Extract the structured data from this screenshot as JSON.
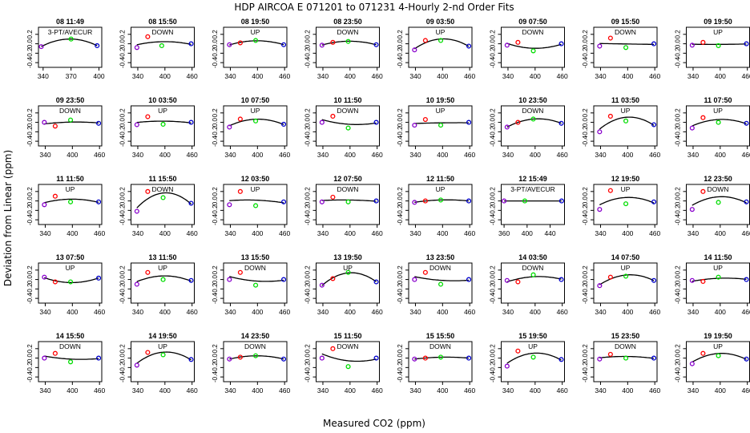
{
  "chart_data": {
    "type": "scatter",
    "title": "HDP   AIRCOA E   071201 to 071231   4-Hourly 2-nd Order Fits",
    "xlabel": "Measured CO2 (ppm)",
    "ylabel": "Deviation from Linear (ppm)",
    "y_ticks": [
      "0.2",
      "0.0",
      "-0.2",
      "-0.4"
    ],
    "ylim": [
      -0.5,
      0.35
    ],
    "colors": {
      "point_low": "#8800cc",
      "point_mid_low": "#ff0000",
      "point_mid_high": "#00dd00",
      "point_high": "#0000cc",
      "fit": "#000000"
    },
    "panels": [
      {
        "time": "08 11:49",
        "mode": "3-PT/AVECUR",
        "xt": [
          "340",
          "370",
          "400"
        ],
        "xlim": [
          335,
          403
        ],
        "x": [
          338,
          370,
          398
        ],
        "y": [
          -0.06,
          0.1,
          -0.04
        ]
      },
      {
        "time": "08 15:50",
        "mode": "DOWN",
        "xt": [
          "340",
          "400",
          "460"
        ],
        "xlim": [
          325,
          465
        ],
        "x": [
          338,
          362,
          393,
          458
        ],
        "y": [
          -0.08,
          0.15,
          -0.04,
          0.0
        ]
      },
      {
        "time": "08 19:50",
        "mode": "UP",
        "xt": [
          "340",
          "400",
          "460"
        ],
        "xlim": [
          325,
          465
        ],
        "x": [
          338,
          362,
          396,
          458
        ],
        "y": [
          -0.02,
          0.02,
          0.07,
          -0.02
        ]
      },
      {
        "time": "08 23:50",
        "mode": "DOWN",
        "xt": [
          "340",
          "400",
          "460"
        ],
        "xlim": [
          325,
          465
        ],
        "x": [
          338,
          362,
          396,
          458
        ],
        "y": [
          -0.03,
          0.03,
          0.05,
          -0.02
        ]
      },
      {
        "time": "09 03:50",
        "mode": "UP",
        "xt": [
          "340",
          "400",
          "460"
        ],
        "xlim": [
          325,
          465
        ],
        "x": [
          338,
          362,
          396,
          458
        ],
        "y": [
          -0.13,
          0.07,
          0.07,
          -0.05
        ]
      },
      {
        "time": "09 07:50",
        "mode": "DOWN",
        "xt": [
          "340",
          "400",
          "460"
        ],
        "xlim": [
          325,
          465
        ],
        "x": [
          338,
          362,
          396,
          458
        ],
        "y": [
          -0.03,
          0.03,
          -0.15,
          0.0
        ]
      },
      {
        "time": "09 15:50",
        "mode": "DOWN",
        "xt": [
          "340",
          "400",
          "460"
        ],
        "xlim": [
          325,
          465
        ],
        "x": [
          338,
          362,
          396,
          458
        ],
        "y": [
          -0.05,
          0.12,
          -0.08,
          0.0
        ]
      },
      {
        "time": "09 19:50",
        "mode": "UP",
        "xt": [
          "340",
          "400",
          "460"
        ],
        "xlim": [
          325,
          465
        ],
        "x": [
          338,
          362,
          396,
          458
        ],
        "y": [
          -0.03,
          0.03,
          -0.04,
          0.0
        ]
      },
      {
        "time": "09 23:50",
        "mode": "DOWN",
        "xt": [
          "340",
          "400",
          "460"
        ],
        "xlim": [
          325,
          465
        ],
        "x": [
          338,
          362,
          396,
          458
        ],
        "y": [
          0.0,
          -0.08,
          0.05,
          -0.02
        ]
      },
      {
        "time": "10 03:50",
        "mode": "UP",
        "xt": [
          "340",
          "400",
          "460"
        ],
        "xlim": [
          325,
          465
        ],
        "x": [
          338,
          362,
          396,
          458
        ],
        "y": [
          -0.05,
          0.12,
          -0.04,
          0.0
        ]
      },
      {
        "time": "10 07:50",
        "mode": "UP",
        "xt": [
          "340",
          "400",
          "460"
        ],
        "xlim": [
          325,
          465
        ],
        "x": [
          338,
          362,
          396,
          458
        ],
        "y": [
          -0.1,
          0.07,
          0.03,
          -0.04
        ]
      },
      {
        "time": "10 11:50",
        "mode": "DOWN",
        "xt": [
          "340",
          "400",
          "460"
        ],
        "xlim": [
          325,
          465
        ],
        "x": [
          338,
          362,
          396,
          458
        ],
        "y": [
          0.0,
          0.13,
          -0.12,
          0.0
        ]
      },
      {
        "time": "10 19:50",
        "mode": "UP",
        "xt": [
          "340",
          "400",
          "460"
        ],
        "xlim": [
          325,
          465
        ],
        "x": [
          338,
          362,
          396,
          458
        ],
        "y": [
          -0.06,
          0.06,
          -0.06,
          0.0
        ]
      },
      {
        "time": "10 23:50",
        "mode": "DOWN",
        "xt": [
          "340",
          "400",
          "460"
        ],
        "xlim": [
          325,
          465
        ],
        "x": [
          338,
          362,
          396,
          458
        ],
        "y": [
          -0.1,
          0.0,
          0.07,
          -0.02
        ]
      },
      {
        "time": "11 03:50",
        "mode": "UP",
        "xt": [
          "340",
          "400",
          "460"
        ],
        "xlim": [
          325,
          465
        ],
        "x": [
          338,
          362,
          396,
          458
        ],
        "y": [
          -0.2,
          0.13,
          0.03,
          -0.05
        ]
      },
      {
        "time": "11 07:50",
        "mode": "UP",
        "xt": [
          "340",
          "400",
          "460"
        ],
        "xlim": [
          325,
          465
        ],
        "x": [
          338,
          362,
          396,
          458
        ],
        "y": [
          -0.12,
          0.1,
          0.0,
          -0.02
        ]
      },
      {
        "time": "11 11:50",
        "mode": "UP",
        "xt": [
          "340",
          "400",
          "460"
        ],
        "xlim": [
          325,
          465
        ],
        "x": [
          338,
          362,
          396,
          458
        ],
        "y": [
          -0.08,
          0.1,
          -0.02,
          -0.02
        ]
      },
      {
        "time": "11 15:50",
        "mode": "DOWN",
        "xt": [
          "340",
          "400",
          "460"
        ],
        "xlim": [
          325,
          465
        ],
        "x": [
          338,
          362,
          396,
          458
        ],
        "y": [
          -0.22,
          0.2,
          0.07,
          -0.05
        ]
      },
      {
        "time": "12 03:50",
        "mode": "UP",
        "xt": [
          "340",
          "400",
          "460"
        ],
        "xlim": [
          325,
          465
        ],
        "x": [
          338,
          362,
          396,
          458
        ],
        "y": [
          -0.08,
          0.2,
          -0.1,
          -0.02
        ]
      },
      {
        "time": "12 07:50",
        "mode": "DOWN",
        "xt": [
          "340",
          "400",
          "460"
        ],
        "xlim": [
          325,
          465
        ],
        "x": [
          338,
          362,
          396,
          458
        ],
        "y": [
          -0.02,
          0.08,
          -0.02,
          0.0
        ]
      },
      {
        "time": "12 11:50",
        "mode": "UP",
        "xt": [
          "340",
          "400",
          "460"
        ],
        "xlim": [
          325,
          465
        ],
        "x": [
          338,
          362,
          396,
          458
        ],
        "y": [
          -0.03,
          0.0,
          0.02,
          0.0
        ]
      },
      {
        "time": "12 15:49",
        "mode": "3-PT/AVECUR",
        "xt": [
          "360",
          "400",
          "440"
        ],
        "xlim": [
          355,
          465
        ],
        "x": [
          360,
          396,
          460
        ],
        "y": [
          0.0,
          0.0,
          0.0
        ]
      },
      {
        "time": "12 19:50",
        "mode": "UP",
        "xt": [
          "340",
          "400",
          "460"
        ],
        "xlim": [
          325,
          465
        ],
        "x": [
          338,
          362,
          396,
          458
        ],
        "y": [
          -0.18,
          0.22,
          -0.06,
          -0.02
        ]
      },
      {
        "time": "12 23:50",
        "mode": "DOWN",
        "xt": [
          "340",
          "400",
          "460"
        ],
        "xlim": [
          325,
          465
        ],
        "x": [
          338,
          362,
          396,
          458
        ],
        "y": [
          -0.18,
          0.2,
          -0.03,
          -0.02
        ]
      },
      {
        "time": "13 07:50",
        "mode": "UP",
        "xt": [
          "340",
          "400",
          "460"
        ],
        "xlim": [
          325,
          465
        ],
        "x": [
          338,
          362,
          396,
          458
        ],
        "y": [
          0.05,
          -0.05,
          -0.05,
          0.03
        ]
      },
      {
        "time": "13 11:50",
        "mode": "UP",
        "xt": [
          "340",
          "400",
          "460"
        ],
        "xlim": [
          325,
          465
        ],
        "x": [
          338,
          362,
          396,
          458
        ],
        "y": [
          -0.1,
          0.15,
          0.0,
          -0.02
        ]
      },
      {
        "time": "13 15:50",
        "mode": "DOWN",
        "xt": [
          "340",
          "400",
          "460"
        ],
        "xlim": [
          325,
          465
        ],
        "x": [
          338,
          362,
          396,
          458
        ],
        "y": [
          0.0,
          0.15,
          -0.12,
          0.0
        ]
      },
      {
        "time": "13 19:50",
        "mode": "UP",
        "xt": [
          "340",
          "400",
          "460"
        ],
        "xlim": [
          325,
          465
        ],
        "x": [
          338,
          362,
          396,
          458
        ],
        "y": [
          -0.12,
          0.02,
          0.15,
          -0.05
        ]
      },
      {
        "time": "13 23:50",
        "mode": "DOWN",
        "xt": [
          "340",
          "400",
          "460"
        ],
        "xlim": [
          325,
          465
        ],
        "x": [
          338,
          362,
          396,
          458
        ],
        "y": [
          0.0,
          0.15,
          -0.1,
          0.0
        ]
      },
      {
        "time": "14 03:50",
        "mode": "DOWN",
        "xt": [
          "340",
          "400",
          "460"
        ],
        "xlim": [
          325,
          465
        ],
        "x": [
          338,
          362,
          396,
          458
        ],
        "y": [
          -0.02,
          -0.05,
          0.1,
          0.0
        ]
      },
      {
        "time": "14 07:50",
        "mode": "UP",
        "xt": [
          "340",
          "400",
          "460"
        ],
        "xlim": [
          325,
          465
        ],
        "x": [
          338,
          362,
          396,
          458
        ],
        "y": [
          -0.13,
          0.05,
          0.07,
          -0.02
        ]
      },
      {
        "time": "14 11:50",
        "mode": "UP",
        "xt": [
          "340",
          "400",
          "460"
        ],
        "xlim": [
          325,
          465
        ],
        "x": [
          338,
          362,
          396,
          458
        ],
        "y": [
          -0.02,
          -0.04,
          0.05,
          0.0
        ]
      },
      {
        "time": "14 15:50",
        "mode": "DOWN",
        "xt": [
          "340",
          "400",
          "460"
        ],
        "xlim": [
          325,
          465
        ],
        "x": [
          338,
          362,
          396,
          458
        ],
        "y": [
          0.0,
          0.1,
          -0.08,
          0.0
        ]
      },
      {
        "time": "14 19:50",
        "mode": "UP",
        "xt": [
          "340",
          "400",
          "460"
        ],
        "xlim": [
          325,
          465
        ],
        "x": [
          338,
          362,
          396,
          458
        ],
        "y": [
          -0.15,
          0.12,
          0.07,
          -0.03
        ]
      },
      {
        "time": "14 23:50",
        "mode": "DOWN",
        "xt": [
          "340",
          "400",
          "460"
        ],
        "xlim": [
          325,
          465
        ],
        "x": [
          338,
          362,
          396,
          458
        ],
        "y": [
          -0.02,
          0.02,
          0.05,
          -0.02
        ]
      },
      {
        "time": "15 11:50",
        "mode": "DOWN",
        "xt": [
          "340",
          "400",
          "460"
        ],
        "xlim": [
          325,
          465
        ],
        "x": [
          338,
          362,
          396,
          458
        ],
        "y": [
          0.0,
          0.2,
          -0.18,
          0.0
        ]
      },
      {
        "time": "15 15:50",
        "mode": "DOWN",
        "xt": [
          "340",
          "400",
          "460"
        ],
        "xlim": [
          325,
          465
        ],
        "x": [
          338,
          362,
          396,
          458
        ],
        "y": [
          -0.02,
          0.0,
          0.02,
          0.0
        ]
      },
      {
        "time": "15 19:50",
        "mode": "UP",
        "xt": [
          "340",
          "400",
          "460"
        ],
        "xlim": [
          325,
          465
        ],
        "x": [
          338,
          362,
          396,
          458
        ],
        "y": [
          -0.17,
          0.15,
          0.02,
          -0.03
        ]
      },
      {
        "time": "15 23:50",
        "mode": "DOWN",
        "xt": [
          "340",
          "400",
          "460"
        ],
        "xlim": [
          325,
          465
        ],
        "x": [
          338,
          362,
          396,
          458
        ],
        "y": [
          -0.02,
          0.08,
          0.0,
          0.0
        ]
      },
      {
        "time": "19 19:50",
        "mode": "UP",
        "xt": [
          "340",
          "400",
          "460"
        ],
        "xlim": [
          325,
          465
        ],
        "x": [
          338,
          362,
          396,
          458
        ],
        "y": [
          -0.12,
          0.1,
          0.05,
          -0.02
        ]
      }
    ]
  }
}
